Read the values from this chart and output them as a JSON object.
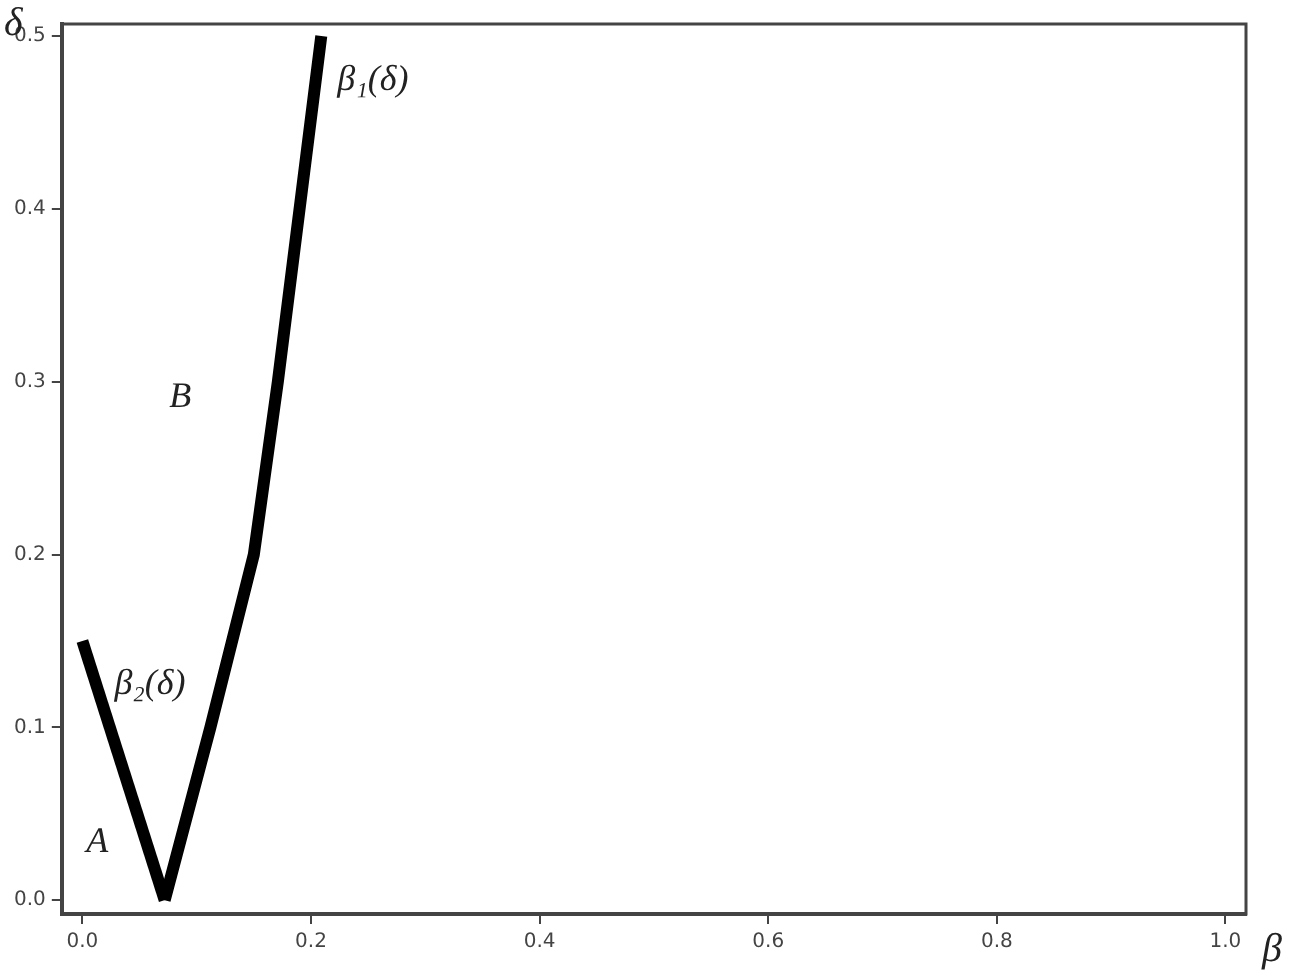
{
  "chart_data": {
    "type": "line",
    "xlabel": "β",
    "ylabel": "δ",
    "xlim": [
      -0.018,
      1.018
    ],
    "ylim": [
      -0.008,
      0.507
    ],
    "xticks": [
      {
        "value": 0,
        "label": "0.0"
      },
      0.2,
      0.4,
      0.6,
      0.8,
      {
        "value": 1,
        "label": "1.0"
      }
    ],
    "yticks": [
      {
        "value": 0,
        "label": "0.0"
      },
      0.1,
      0.2,
      0.3,
      0.4,
      0.5
    ],
    "grid": false,
    "legend": false,
    "marker": "none",
    "line_style": "solid",
    "series": [
      {
        "name": "β₂(δ)",
        "color": "#000000",
        "x": [
          0,
          0.072
        ],
        "values": [
          0.15,
          0
        ]
      },
      {
        "name": "β₁(δ)",
        "color": "#000000",
        "x": [
          0.072,
          0.112,
          0.15,
          0.171,
          0.19,
          0.209
        ],
        "values": [
          0,
          0.1,
          0.2,
          0.3,
          0.4,
          0.5
        ]
      }
    ],
    "annotations": [
      "B",
      "A"
    ]
  }
}
